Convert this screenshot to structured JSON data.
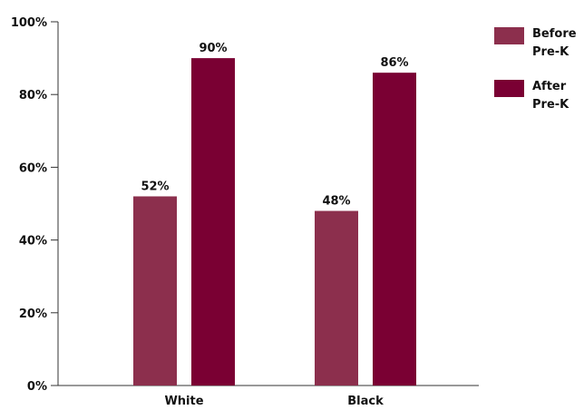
{
  "chart_data": {
    "type": "bar",
    "categories": [
      "White",
      "Black"
    ],
    "series": [
      {
        "name": "Before\nPre-K",
        "values": [
          52,
          48
        ],
        "labels": [
          "52%",
          "48%"
        ],
        "color": "#8c2f4d"
      },
      {
        "name": "After\nPre-K",
        "values": [
          90,
          86
        ],
        "labels": [
          "90%",
          "86%"
        ],
        "color": "#7a0033"
      }
    ],
    "ylim": [
      0,
      100
    ],
    "yticks": [
      0,
      20,
      40,
      60,
      80,
      100
    ],
    "ytick_labels": [
      "0%",
      "20%",
      "40%",
      "60%",
      "80%",
      "100%"
    ],
    "legend_position": "top-right",
    "grid": false
  }
}
